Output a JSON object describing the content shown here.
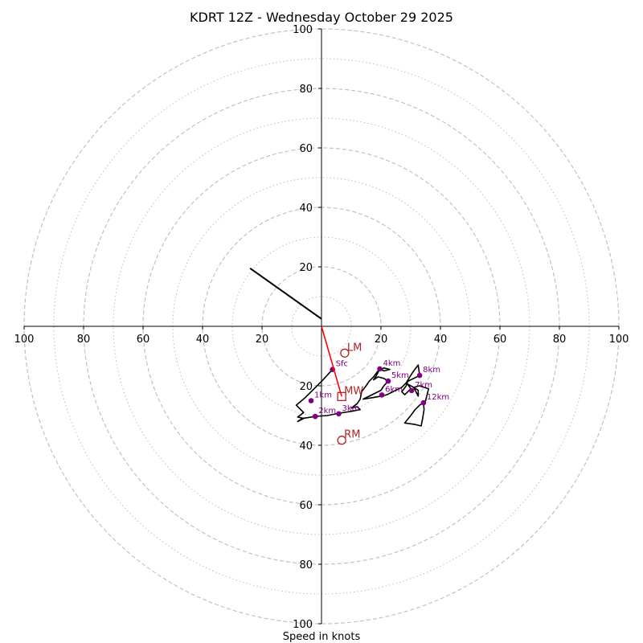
{
  "chart_data": {
    "type": "hodograph",
    "title": "KDRT 12Z - Wednesday October 29 2025",
    "xlabel": "Speed in knots",
    "ylabel": "",
    "range_knots": [
      -100,
      100
    ],
    "ring_major_knots": [
      20,
      40,
      60,
      80,
      100
    ],
    "ring_minor_knots": [
      10,
      30,
      50,
      70,
      90
    ],
    "x_tick_labels": [
      "100",
      "80",
      "60",
      "40",
      "20",
      "20",
      "40",
      "60",
      "80",
      "100"
    ],
    "x_tick_values": [
      -100,
      -80,
      -60,
      -40,
      -20,
      20,
      40,
      60,
      80,
      100
    ],
    "y_tick_labels": [
      "100",
      "80",
      "60",
      "40",
      "20",
      "20",
      "40",
      "60",
      "80",
      "100"
    ],
    "y_tick_values": [
      100,
      80,
      60,
      40,
      20,
      -20,
      -40,
      -60,
      -80,
      -100
    ],
    "hodograph_trace": [
      [
        3.7,
        -14.5
      ],
      [
        0.5,
        -18.0
      ],
      [
        -2.5,
        -21.0
      ],
      [
        -5.5,
        -24.0
      ],
      [
        -8.5,
        -26.5
      ],
      [
        -6.0,
        -29.0
      ],
      [
        -8.0,
        -30.5
      ],
      [
        -6.0,
        -31.0
      ],
      [
        -8.0,
        -32.0
      ],
      [
        -6.5,
        -31.0
      ],
      [
        -2.1,
        -30.3
      ],
      [
        2.0,
        -30.0
      ],
      [
        6.0,
        -29.2
      ],
      [
        10.0,
        -28.6
      ],
      [
        13.0,
        -28.0
      ],
      [
        12.0,
        -27.0
      ],
      [
        10.0,
        -27.5
      ],
      [
        12.0,
        -26.0
      ],
      [
        13.0,
        -24.5
      ],
      [
        13.5,
        -22.0
      ],
      [
        15.0,
        -20.0
      ],
      [
        16.0,
        -18.5
      ],
      [
        17.5,
        -17.0
      ],
      [
        19.0,
        -15.0
      ],
      [
        21.0,
        -14.0
      ],
      [
        23.0,
        -14.5
      ],
      [
        21.0,
        -15.0
      ],
      [
        19.6,
        -14.3
      ],
      [
        18.5,
        -16.5
      ],
      [
        17.5,
        -18.0
      ],
      [
        19.0,
        -17.0
      ],
      [
        21.0,
        -17.5
      ],
      [
        22.4,
        -18.4
      ],
      [
        21.0,
        -20.0
      ],
      [
        20.0,
        -21.5
      ],
      [
        17.0,
        -23.0
      ],
      [
        14.0,
        -24.5
      ],
      [
        17.0,
        -24.0
      ],
      [
        20.0,
        -23.5
      ],
      [
        22.0,
        -23.0
      ],
      [
        24.0,
        -22.0
      ],
      [
        27.0,
        -20.5
      ],
      [
        28.5,
        -19.0
      ],
      [
        30.0,
        -16.5
      ],
      [
        31.0,
        -15.0
      ],
      [
        32.5,
        -13.0
      ],
      [
        33.0,
        -16.5
      ],
      [
        31.0,
        -17.5
      ],
      [
        29.0,
        -18.5
      ],
      [
        28.5,
        -20.0
      ],
      [
        27.0,
        -22.0
      ],
      [
        28.0,
        -23.0
      ],
      [
        30.0,
        -21.0
      ],
      [
        29.0,
        -19.5
      ],
      [
        31.0,
        -20.5
      ],
      [
        32.5,
        -21.5
      ],
      [
        32.5,
        -23.5
      ],
      [
        31.0,
        -20.5
      ],
      [
        33.0,
        -20.0
      ],
      [
        36.0,
        -21.0
      ],
      [
        35.5,
        -23.0
      ],
      [
        35.0,
        -25.0
      ],
      [
        34.3,
        -25.7
      ],
      [
        34.5,
        -28.0
      ],
      [
        34.0,
        -31.0
      ],
      [
        33.5,
        -33.5
      ],
      [
        31.5,
        -33.0
      ],
      [
        28.0,
        -32.5
      ],
      [
        30.0,
        -30.0
      ],
      [
        31.5,
        -28.0
      ],
      [
        33.0,
        -26.5
      ],
      [
        34.3,
        -25.7
      ]
    ],
    "height_markers": [
      {
        "label": "Sfc",
        "u": 3.7,
        "v": -14.5
      },
      {
        "label": "1km",
        "u": -3.5,
        "v": -25.0
      },
      {
        "label": "2km",
        "u": -2.1,
        "v": -30.3
      },
      {
        "label": "3km",
        "u": 5.8,
        "v": -29.4
      },
      {
        "label": "4km",
        "u": 19.6,
        "v": -14.3
      },
      {
        "label": "5km",
        "u": 22.4,
        "v": -18.4
      },
      {
        "label": "6km",
        "u": 20.3,
        "v": -23.1
      },
      {
        "label": "7km",
        "u": 30.3,
        "v": -21.6
      },
      {
        "label": "8km",
        "u": 33.0,
        "v": -16.5
      },
      {
        "label": "12km",
        "u": 34.3,
        "v": -25.7
      }
    ],
    "storm_motion": {
      "bunkers_left": {
        "label": "LM",
        "u": 7.8,
        "v": -9.0
      },
      "bunkers_right": {
        "label": "RM",
        "u": 6.8,
        "v": -38.3
      },
      "mean_wind": {
        "label": "MW",
        "u": 6.8,
        "v": -23.6
      },
      "shear_vector": {
        "from_u": 0.0,
        "from_v": 0.0,
        "to_u": 6.8,
        "to_v": -23.6
      }
    },
    "extra_segment": {
      "from_u": -24.0,
      "from_v": 19.5,
      "to_u": 0.0,
      "to_v": 2.5
    },
    "colors": {
      "trace": "#000000",
      "marker": "#800080",
      "storm": "#b22222",
      "shear": "#ff0000",
      "ring": "#bdbdbd",
      "axis": "#000000"
    }
  }
}
